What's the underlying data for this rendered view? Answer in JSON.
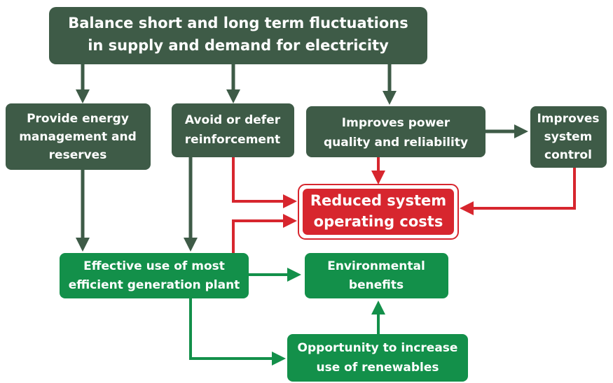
{
  "nodes": [
    {
      "lines": [
        "Balance short and long term fluctuations",
        "in supply and demand for electricity"
      ]
    },
    {
      "lines": [
        "Provide energy",
        "management and",
        "reserves"
      ]
    },
    {
      "lines": [
        "Avoid or defer",
        "reinforcement"
      ]
    },
    {
      "lines": [
        "Improves power",
        "quality and reliability"
      ]
    },
    {
      "lines": [
        "Improves",
        "system",
        "control"
      ]
    },
    {
      "lines": [
        "Reduced system",
        "operating costs"
      ]
    },
    {
      "lines": [
        "Effective use of most",
        "efficient generation plant"
      ]
    },
    {
      "lines": [
        "Environmental",
        "benefits"
      ]
    },
    {
      "lines": [
        "Opportunity to increase",
        "use of renewables"
      ]
    }
  ]
}
